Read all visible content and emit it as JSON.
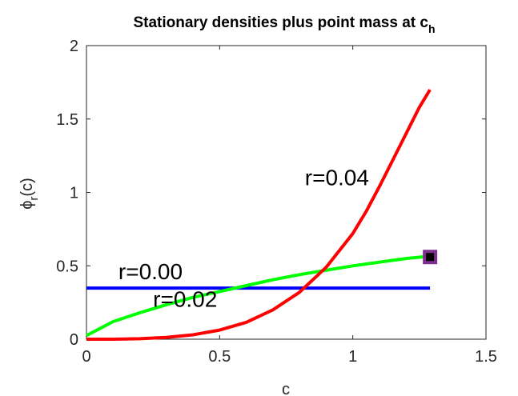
{
  "chart_data": {
    "type": "line",
    "title": "Stationary densities plus point mass at c",
    "title_subscript": "h",
    "xlabel": "c",
    "ylabel_symbol": "ϕ",
    "ylabel_subscript": "r",
    "ylabel_suffix": "(c)",
    "xlim": [
      0,
      1.5
    ],
    "ylim": [
      0,
      2
    ],
    "xticks": [
      0,
      0.5,
      1,
      1.5
    ],
    "xtick_labels": [
      "0",
      "0.5",
      "1",
      "1.5"
    ],
    "yticks": [
      0,
      0.5,
      1,
      1.5,
      2
    ],
    "ytick_labels": [
      "0",
      "0.5",
      "1",
      "1.5",
      "2"
    ],
    "series": [
      {
        "label": "r=0.00",
        "color": "#0000ff",
        "x": [
          0,
          1.29
        ],
        "y": [
          0.348,
          0.348
        ]
      },
      {
        "label": "r=0.02",
        "color": "#00ff00",
        "x": [
          0,
          0.1,
          0.2,
          0.3,
          0.4,
          0.5,
          0.6,
          0.7,
          0.8,
          0.9,
          1.0,
          1.1,
          1.2,
          1.29
        ],
        "y": [
          0.025,
          0.12,
          0.18,
          0.235,
          0.285,
          0.325,
          0.365,
          0.405,
          0.44,
          0.47,
          0.5,
          0.525,
          0.55,
          0.565
        ]
      },
      {
        "label": "r=0.04",
        "color": "#ff0000",
        "x": [
          0,
          0.1,
          0.2,
          0.3,
          0.4,
          0.5,
          0.6,
          0.7,
          0.8,
          0.9,
          1.0,
          1.05,
          1.1,
          1.15,
          1.2,
          1.25,
          1.29
        ],
        "y": [
          0.0,
          0.0,
          0.003,
          0.012,
          0.03,
          0.062,
          0.115,
          0.2,
          0.32,
          0.49,
          0.72,
          0.87,
          1.04,
          1.22,
          1.4,
          1.58,
          1.7
        ]
      }
    ],
    "annotations": [
      {
        "text": "r=0.04",
        "x": 0.82,
        "y": 1.05
      },
      {
        "text": "r=0.00",
        "x": 0.12,
        "y": 0.41
      },
      {
        "text": "r=0.02",
        "x": 0.25,
        "y": 0.22
      }
    ],
    "point_mass": {
      "x": 1.29,
      "y": 0.56,
      "edge_color": "#7e2f8e",
      "face_color": "#000000"
    },
    "grid": false,
    "box": true
  }
}
